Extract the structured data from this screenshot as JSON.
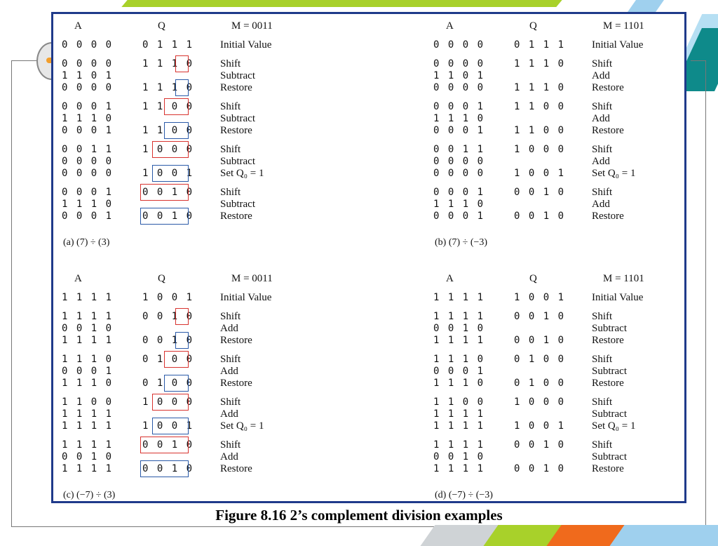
{
  "figure_title": "Figure 8.16 2’s complement division examples",
  "panels": [
    {
      "caption": "(a) (7) ÷ (3)",
      "header": {
        "a": "A",
        "q": "Q",
        "m": "M = 0011"
      },
      "rows": [
        {
          "a": "0000",
          "q": "0111",
          "label": "Initial Value"
        },
        {
          "a": "0000",
          "q": "1110",
          "label": "Shift"
        },
        {
          "a": "1101",
          "q": "",
          "label": "Subtract"
        },
        {
          "a": "0000",
          "q": "1110",
          "label": "Restore"
        },
        {
          "a": "0001",
          "q": "1100",
          "label": "Shift"
        },
        {
          "a": "1110",
          "q": "",
          "label": "Subtract"
        },
        {
          "a": "0001",
          "q": "1100",
          "label": "Restore"
        },
        {
          "a": "0011",
          "q": "1000",
          "label": "Shift"
        },
        {
          "a": "0000",
          "q": "",
          "label": "Subtract"
        },
        {
          "a": "0000",
          "q": "1001",
          "label": "Set Q₀ = 1"
        },
        {
          "a": "0001",
          "q": "0010",
          "label": "Shift"
        },
        {
          "a": "1110",
          "q": "",
          "label": "Subtract"
        },
        {
          "a": "0001",
          "q": "0010",
          "label": "Restore"
        }
      ]
    },
    {
      "caption": "(b) (7) ÷ (−3)",
      "header": {
        "a": "A",
        "q": "Q",
        "m": "M = 1101"
      },
      "rows": [
        {
          "a": "0000",
          "q": "0111",
          "label": "Initial Value"
        },
        {
          "a": "0000",
          "q": "1110",
          "label": "Shift"
        },
        {
          "a": "1101",
          "q": "",
          "label": "Add"
        },
        {
          "a": "0000",
          "q": "1110",
          "label": "Restore"
        },
        {
          "a": "0001",
          "q": "1100",
          "label": "Shift"
        },
        {
          "a": "1110",
          "q": "",
          "label": "Add"
        },
        {
          "a": "0001",
          "q": "1100",
          "label": "Restore"
        },
        {
          "a": "0011",
          "q": "1000",
          "label": "Shift"
        },
        {
          "a": "0000",
          "q": "",
          "label": "Add"
        },
        {
          "a": "0000",
          "q": "1001",
          "label": "Set Q₀ = 1"
        },
        {
          "a": "0001",
          "q": "0010",
          "label": "Shift"
        },
        {
          "a": "1110",
          "q": "",
          "label": "Add"
        },
        {
          "a": "0001",
          "q": "0010",
          "label": "Restore"
        }
      ]
    },
    {
      "caption": "(c) (−7) ÷ (3)",
      "header": {
        "a": "A",
        "q": "Q",
        "m": "M = 0011"
      },
      "rows": [
        {
          "a": "1111",
          "q": "1001",
          "label": "Initial Value"
        },
        {
          "a": "1111",
          "q": "0010",
          "label": "Shift"
        },
        {
          "a": "0010",
          "q": "",
          "label": "Add"
        },
        {
          "a": "1111",
          "q": "0010",
          "label": "Restore"
        },
        {
          "a": "1110",
          "q": "0100",
          "label": "Shift"
        },
        {
          "a": "0001",
          "q": "",
          "label": "Add"
        },
        {
          "a": "1110",
          "q": "0100",
          "label": "Restore"
        },
        {
          "a": "1100",
          "q": "1000",
          "label": "Shift"
        },
        {
          "a": "1111",
          "q": "",
          "label": "Add"
        },
        {
          "a": "1111",
          "q": "1001",
          "label": "Set Q₀ = 1"
        },
        {
          "a": "1111",
          "q": "0010",
          "label": "Shift"
        },
        {
          "a": "0010",
          "q": "",
          "label": "Add"
        },
        {
          "a": "1111",
          "q": "0010",
          "label": "Restore"
        }
      ]
    },
    {
      "caption": "(d) (−7) ÷ (−3)",
      "header": {
        "a": "A",
        "q": "Q",
        "m": "M = 1101"
      },
      "rows": [
        {
          "a": "1111",
          "q": "1001",
          "label": "Initial Value"
        },
        {
          "a": "1111",
          "q": "0010",
          "label": "Shift"
        },
        {
          "a": "0010",
          "q": "",
          "label": "Subtract"
        },
        {
          "a": "1111",
          "q": "0010",
          "label": "Restore"
        },
        {
          "a": "1110",
          "q": "0100",
          "label": "Shift"
        },
        {
          "a": "0001",
          "q": "",
          "label": "Subtract"
        },
        {
          "a": "1110",
          "q": "0100",
          "label": "Restore"
        },
        {
          "a": "1100",
          "q": "1000",
          "label": "Shift"
        },
        {
          "a": "1111",
          "q": "",
          "label": "Subtract"
        },
        {
          "a": "1111",
          "q": "1001",
          "label": "Set Q₀ = 1"
        },
        {
          "a": "1111",
          "q": "0010",
          "label": "Shift"
        },
        {
          "a": "0010",
          "q": "",
          "label": "Subtract"
        },
        {
          "a": "1111",
          "q": "0010",
          "label": "Restore"
        }
      ]
    }
  ]
}
